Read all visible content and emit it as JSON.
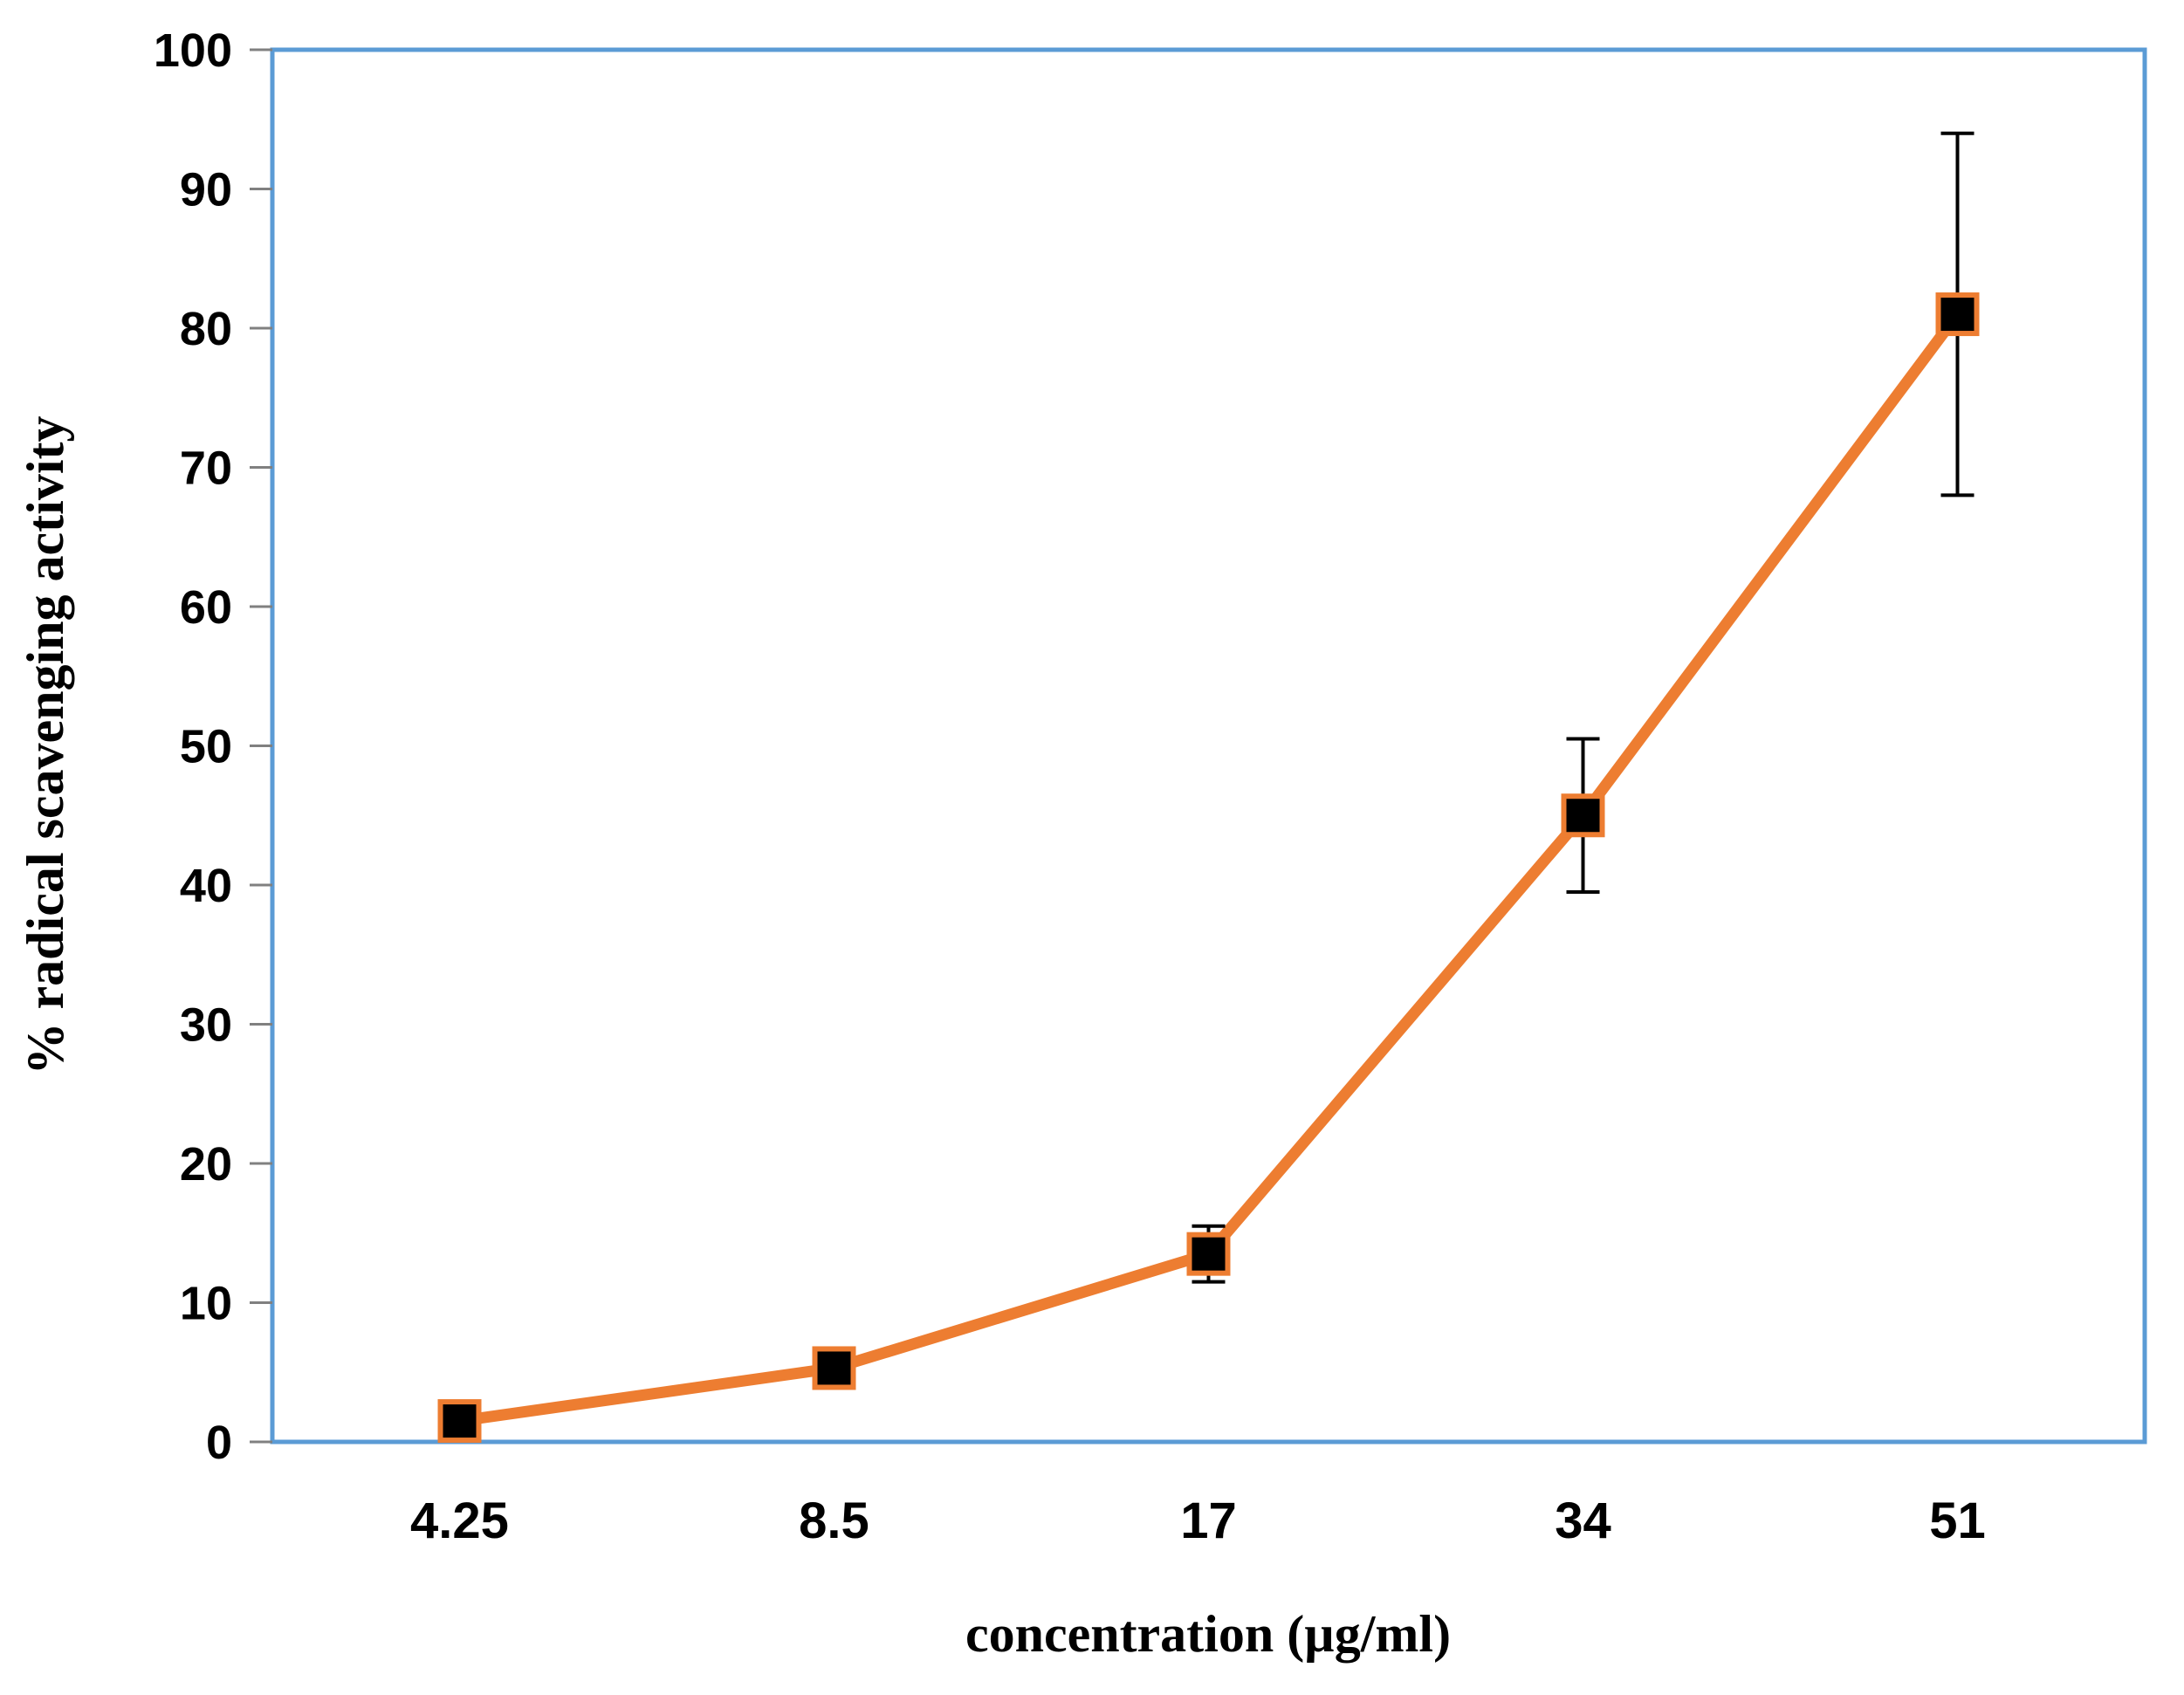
{
  "chart_data": {
    "type": "line",
    "title": "",
    "categories": [
      "4.25",
      "8.5",
      "17",
      "34",
      "51"
    ],
    "series": [
      {
        "name": "% radical scavenging activity",
        "values": [
          1.5,
          5.3,
          13.5,
          45,
          81
        ],
        "errors": [
          0,
          0,
          2,
          5.5,
          13
        ]
      }
    ],
    "xlabel": "concentration (µg/ml)",
    "ylabel": "% radical scavenging activity",
    "ylim": [
      0,
      100
    ],
    "yticks": [
      0,
      10,
      20,
      30,
      40,
      50,
      60,
      70,
      80,
      90,
      100
    ],
    "grid": false,
    "legend": false,
    "marker": "square",
    "colors": {
      "line": "#ED7D31",
      "marker_fill": "#000000",
      "marker_border": "#ED7D31",
      "error_bar": "#000000",
      "axis_border": "#5B9BD5",
      "tick": "#808080",
      "text": "#000000",
      "background": "#FFFFFF"
    }
  }
}
